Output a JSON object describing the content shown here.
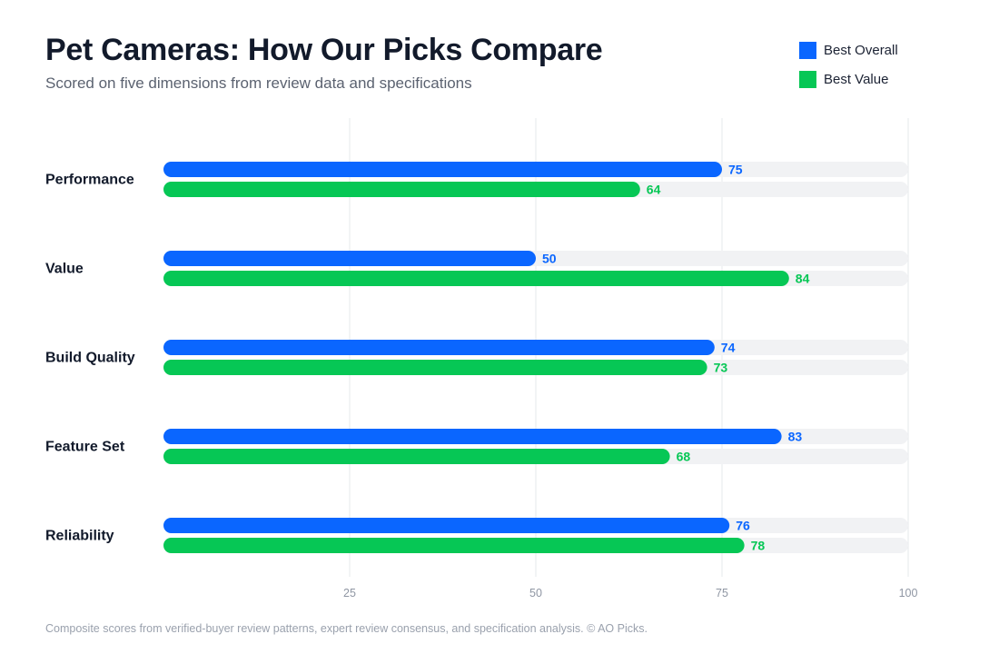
{
  "header": {
    "title": "Pet Cameras: How Our Picks Compare",
    "subtitle": "Scored on five dimensions from review data and specifications"
  },
  "legend": [
    {
      "label": "Best Overall",
      "color": "#0a66ff"
    },
    {
      "label": "Best Value",
      "color": "#06c755"
    }
  ],
  "chart_data": {
    "type": "bar",
    "orientation": "horizontal",
    "title": "Pet Cameras: How Our Picks Compare",
    "subtitle": "Scored on five dimensions from review data and specifications",
    "categories": [
      "Performance",
      "Value",
      "Build Quality",
      "Feature Set",
      "Reliability"
    ],
    "series": [
      {
        "name": "Best Overall",
        "color": "#0a66ff",
        "values": [
          75,
          50,
          74,
          83,
          76
        ]
      },
      {
        "name": "Best Value",
        "color": "#06c755",
        "values": [
          64,
          84,
          73,
          68,
          78
        ]
      }
    ],
    "xlim": [
      0,
      100
    ],
    "xticks": [
      25,
      50,
      75,
      100
    ],
    "grid": true,
    "legend_position": "top-right",
    "track_color": "#f1f2f4",
    "grid_color": "#e6e8eb"
  },
  "footer": {
    "note": "Composite scores from verified-buyer review patterns, expert review consensus, and specification analysis. © AO Picks."
  }
}
